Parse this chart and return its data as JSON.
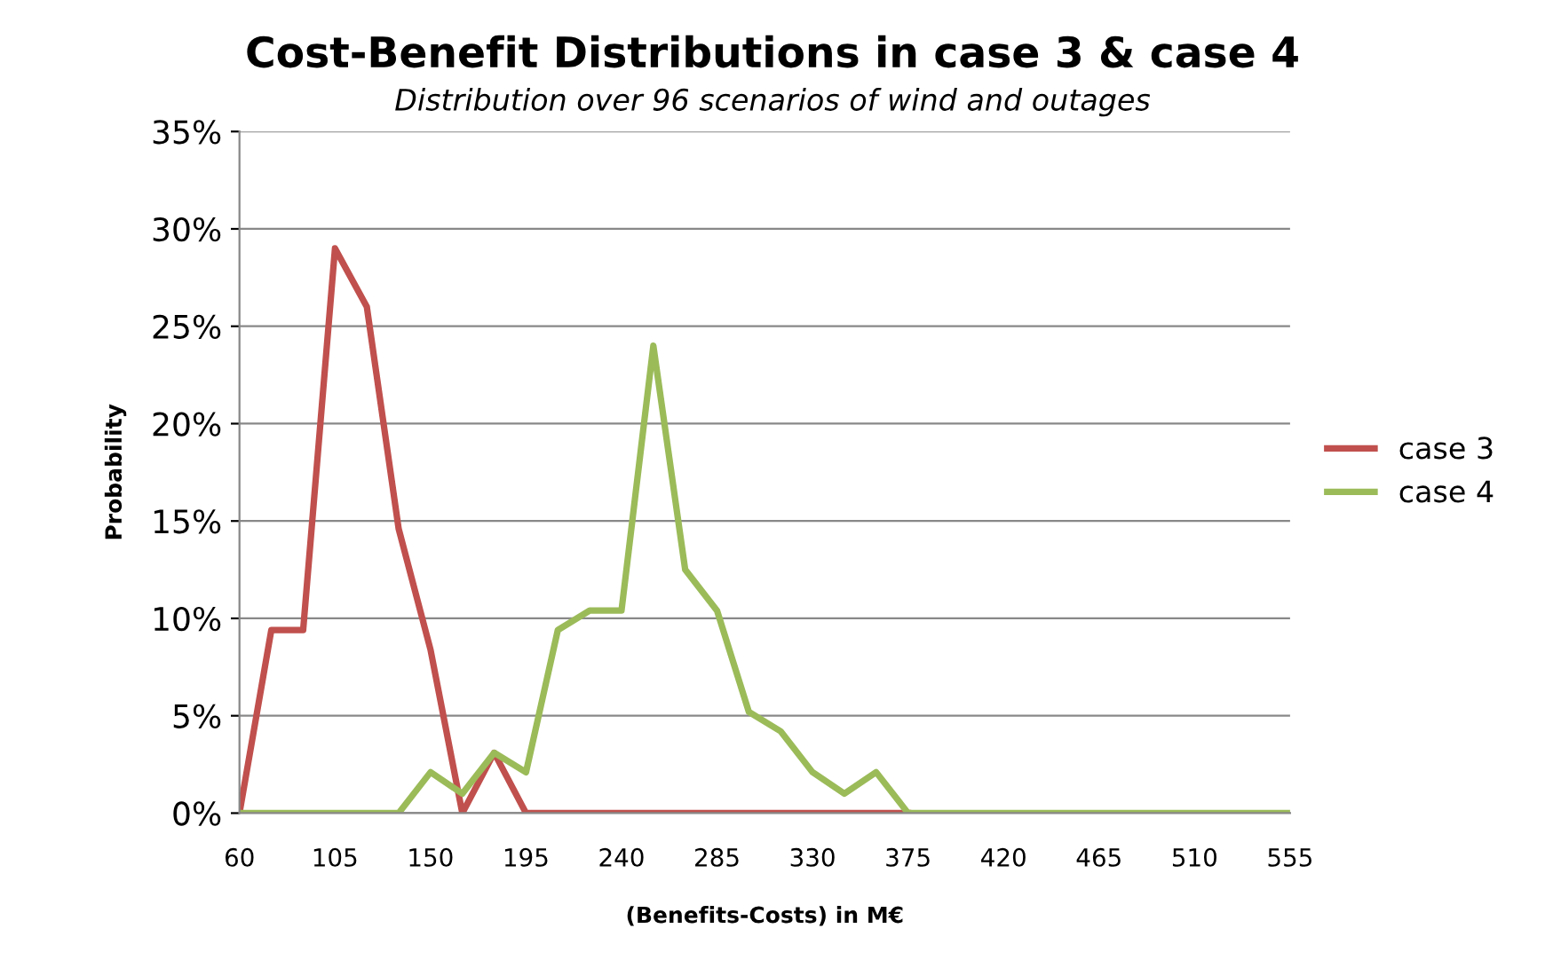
{
  "chart_data": {
    "type": "line",
    "title": "Cost-Benefit Distributions in case 3 & case 4",
    "subtitle": "Distribution over 96 scenarios of wind and outages",
    "xlabel": "(Benefits-Costs) in M€",
    "ylabel": "Probability",
    "series": [
      {
        "name": "case 3",
        "color": "#c0504d",
        "x": [
          60,
          75,
          90,
          105,
          120,
          135,
          150,
          165,
          180,
          195,
          210,
          225,
          240,
          255,
          270,
          285,
          300,
          315,
          330,
          345,
          360,
          375
        ],
        "values": [
          0,
          9.4,
          9.4,
          29,
          26,
          14.6,
          8.4,
          0,
          3.1,
          0,
          0,
          0,
          0,
          0,
          0,
          0,
          0,
          0,
          0,
          0,
          0,
          0
        ]
      },
      {
        "name": "case 4",
        "color": "#9bbb59",
        "x": [
          60,
          75,
          90,
          105,
          120,
          135,
          150,
          165,
          180,
          195,
          210,
          225,
          240,
          255,
          270,
          285,
          300,
          315,
          330,
          345,
          360,
          375,
          390,
          405,
          420,
          435,
          450,
          465,
          480,
          495,
          510,
          525,
          540,
          555
        ],
        "values": [
          0,
          0,
          0,
          0,
          0,
          0,
          2.1,
          1.0,
          3.1,
          2.1,
          9.4,
          10.4,
          10.4,
          24,
          12.5,
          10.4,
          5.2,
          4.2,
          2.1,
          1.0,
          2.1,
          0,
          0,
          0,
          0,
          0,
          0,
          0,
          0,
          0,
          0,
          0,
          0,
          0
        ]
      }
    ],
    "xlim": [
      60,
      555
    ],
    "xticks": [
      60,
      105,
      150,
      195,
      240,
      285,
      330,
      375,
      420,
      465,
      510,
      555
    ],
    "ylim": [
      0,
      35
    ],
    "yticks": [
      {
        "value": 0,
        "label": "0%"
      },
      {
        "value": 5,
        "label": "5%"
      },
      {
        "value": 10,
        "label": "10%"
      },
      {
        "value": 15,
        "label": "15%"
      },
      {
        "value": 20,
        "label": "20%"
      },
      {
        "value": 25,
        "label": "25%"
      },
      {
        "value": 30,
        "label": "30%"
      },
      {
        "value": 35,
        "label": "35%"
      }
    ],
    "grid": "y",
    "legend": "right",
    "marker": "none",
    "line_style": "solid"
  }
}
